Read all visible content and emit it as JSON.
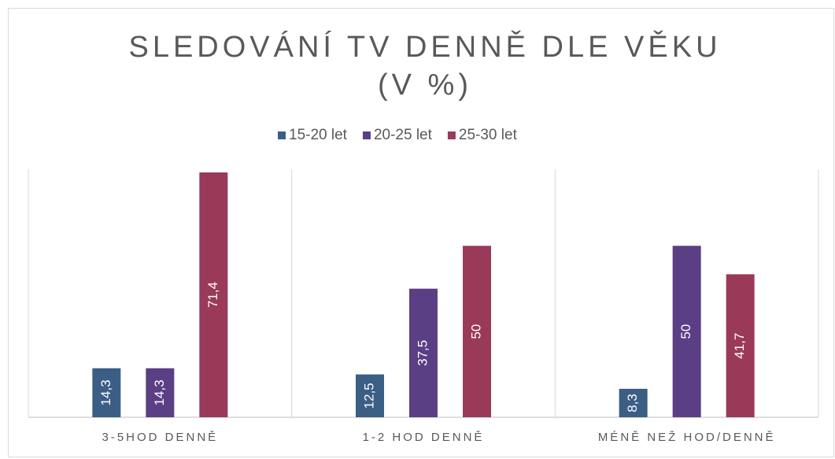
{
  "chart_data": {
    "type": "bar",
    "title": [
      "SLEDOVÁNÍ TV DENNĚ DLE VĚKU",
      "(V %)"
    ],
    "categories": [
      "3-5HOD DENNĚ",
      "1-2 HOD DENNĚ",
      "MÉNĚ  NEŽ HOD/DENNĚ"
    ],
    "series": [
      {
        "name": "15-20 let",
        "color": "#3b5e85",
        "values": [
          14.3,
          12.5,
          8.3
        ],
        "value_labels": [
          "14,3",
          "12,5",
          "8,3"
        ]
      },
      {
        "name": "20-25 let",
        "color": "#5b3f85",
        "values": [
          14.3,
          37.5,
          50
        ],
        "value_labels": [
          "14,3",
          "37,5",
          "50"
        ]
      },
      {
        "name": "25-30 let",
        "color": "#9b3a58",
        "values": [
          71.4,
          50,
          41.7
        ],
        "value_labels": [
          "71,4",
          "50",
          "41,7"
        ]
      }
    ],
    "legend": "top"
  }
}
